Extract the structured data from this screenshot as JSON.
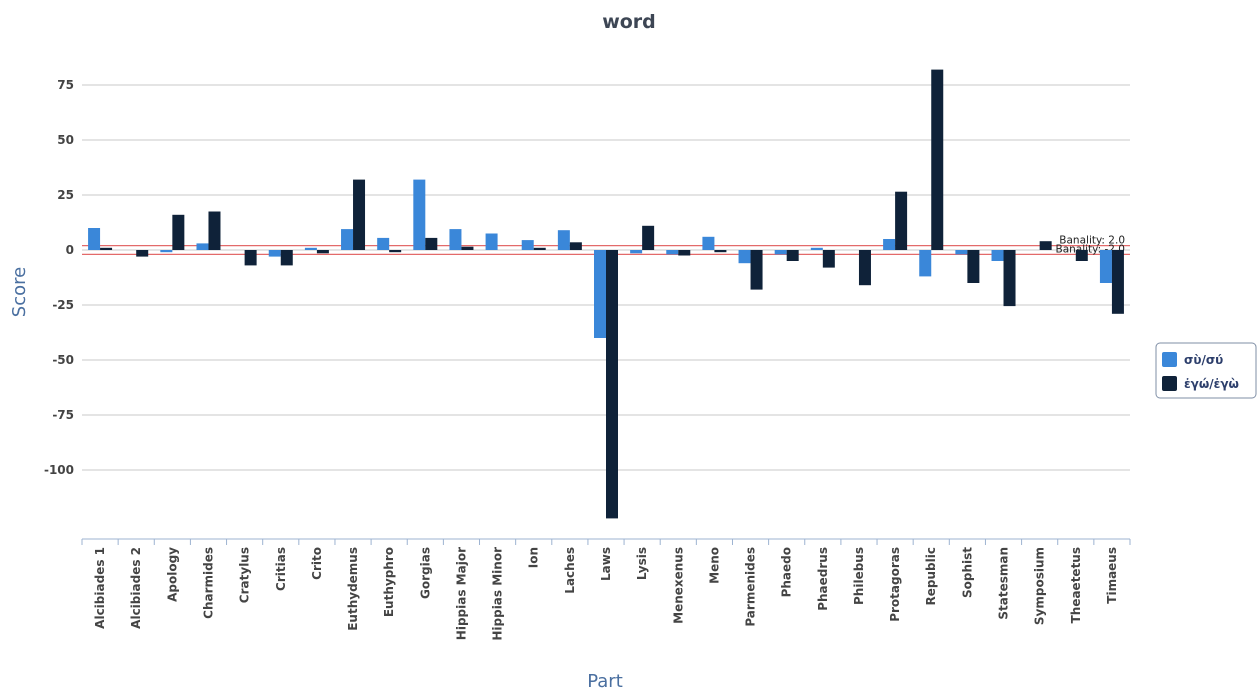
{
  "chart_data": {
    "type": "bar",
    "title": "word",
    "xlabel": "Part",
    "ylabel": "Score",
    "ylim": [
      -125,
      90
    ],
    "yticks": [
      75,
      50,
      25,
      0,
      -25,
      -50,
      -75,
      -100
    ],
    "grid": true,
    "legend_position": "right",
    "categories": [
      "Alcibiades 1",
      "Alcibiades 2",
      "Apology",
      "Charmides",
      "Cratylus",
      "Critias",
      "Crito",
      "Euthydemus",
      "Euthyphro",
      "Gorgias",
      "Hippias Major",
      "Hippias Minor",
      "Ion",
      "Laches",
      "Laws",
      "Lysis",
      "Menexenus",
      "Meno",
      "Parmenides",
      "Phaedo",
      "Phaedrus",
      "Philebus",
      "Protagoras",
      "Republic",
      "Sophist",
      "Statesman",
      "Symposium",
      "Theaetetus",
      "Timaeus"
    ],
    "series": [
      {
        "name": "σὺ/σύ",
        "color": "#3a87d9",
        "values": [
          10,
          0,
          -1,
          3,
          0,
          -3,
          1,
          9.5,
          5.5,
          32,
          9.5,
          7.5,
          4.5,
          9,
          -40,
          -1.5,
          -2,
          6,
          -6,
          -2,
          1,
          0,
          5,
          -12,
          -2,
          -5,
          0,
          0,
          -15
        ]
      },
      {
        "name": "ἐγώ/ἐγὼ",
        "color": "#0f2239",
        "values": [
          1,
          -3,
          16,
          17.5,
          -7,
          -7,
          -1.5,
          32,
          -1,
          5.5,
          1.5,
          0,
          1,
          3.5,
          -122,
          11,
          -2.5,
          -1,
          -18,
          -5,
          -8,
          -16,
          26.5,
          82,
          -15,
          -25.5,
          4,
          -5,
          -29
        ]
      }
    ],
    "reference_lines": [
      {
        "value": 2.0,
        "label": "Banality: 2.0",
        "color": "#e36a6a"
      },
      {
        "value": -2.0,
        "label": "Banality: -2.0",
        "color": "#e36a6a"
      }
    ]
  }
}
